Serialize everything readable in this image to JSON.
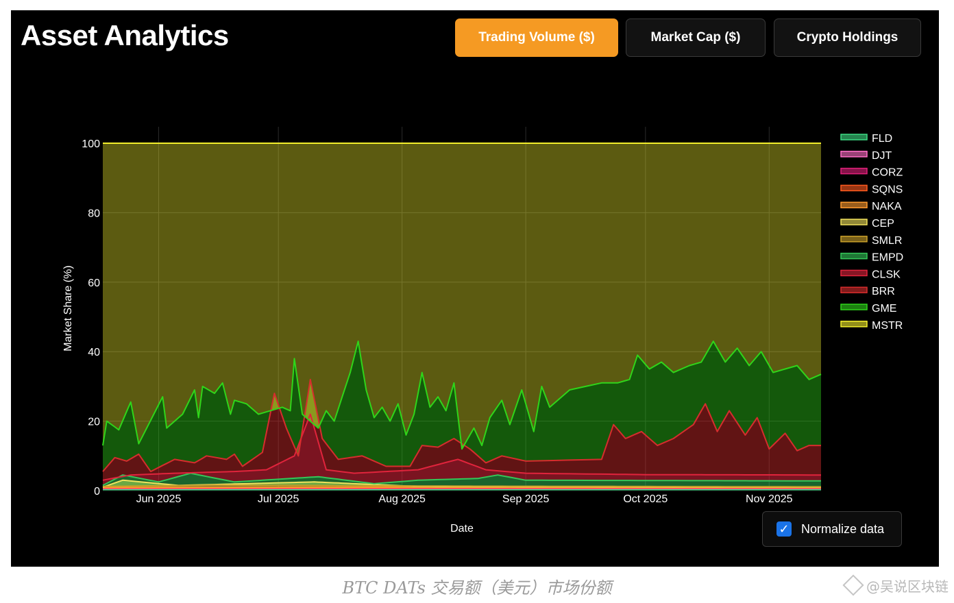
{
  "header": {
    "title": "Asset Analytics",
    "tabs": [
      {
        "label": "Trading Volume ($)",
        "active": true
      },
      {
        "label": "Market Cap ($)",
        "active": false
      },
      {
        "label": "Crypto Holdings",
        "active": false
      }
    ]
  },
  "normalize": {
    "label": "Normalize data",
    "checked": true
  },
  "caption": "BTC DATs 交易额（美元）市场份额",
  "watermark": "@吴说区块链",
  "colors": {
    "accent": "#f59a23",
    "checkbox": "#1a73e8"
  },
  "chart_data": {
    "type": "area",
    "xlabel": "Date",
    "ylabel": "Market Share (%)",
    "ylim": [
      0,
      100
    ],
    "xlim": [
      "2025-05-18",
      "2025-11-14"
    ],
    "yticks": [
      0,
      20,
      40,
      60,
      80,
      100
    ],
    "xticks": [
      {
        "date": "2025-06-01",
        "label": "Jun 2025"
      },
      {
        "date": "2025-07-01",
        "label": "Jul 2025"
      },
      {
        "date": "2025-08-01",
        "label": "Aug 2025"
      },
      {
        "date": "2025-09-01",
        "label": "Sep 2025"
      },
      {
        "date": "2025-10-01",
        "label": "Oct 2025"
      },
      {
        "date": "2025-11-01",
        "label": "Nov 2025"
      }
    ],
    "grid": true,
    "legend_position": "right",
    "stacked": true,
    "series_cumulative_top": [
      {
        "name": "FLD",
        "color": "#3ddc84",
        "points": [
          [
            "2025-05-18",
            0.4
          ],
          [
            "2025-07-15",
            0.4
          ],
          [
            "2025-11-14",
            0.4
          ]
        ]
      },
      {
        "name": "DJT",
        "color": "#ff6ec7",
        "points": [
          [
            "2025-05-18",
            0.6
          ],
          [
            "2025-07-15",
            0.6
          ],
          [
            "2025-11-14",
            0.6
          ]
        ]
      },
      {
        "name": "CORZ",
        "color": "#e0207a",
        "points": [
          [
            "2025-05-18",
            0.7
          ],
          [
            "2025-07-15",
            0.7
          ],
          [
            "2025-11-14",
            0.7
          ]
        ]
      },
      {
        "name": "SQNS",
        "color": "#ff5a1f",
        "points": [
          [
            "2025-05-18",
            0.8
          ],
          [
            "2025-07-15",
            0.8
          ],
          [
            "2025-11-14",
            0.8
          ]
        ]
      },
      {
        "name": "NAKA",
        "color": "#ff9b2e",
        "points": [
          [
            "2025-05-18",
            0.9
          ],
          [
            "2025-08-05",
            1.0
          ],
          [
            "2025-11-14",
            0.9
          ]
        ]
      },
      {
        "name": "CEP",
        "color": "#f2e35c",
        "points": [
          [
            "2025-05-18",
            1.0
          ],
          [
            "2025-05-23",
            3.0
          ],
          [
            "2025-06-06",
            1.5
          ],
          [
            "2025-07-10",
            2.5
          ],
          [
            "2025-08-05",
            1.2
          ],
          [
            "2025-11-14",
            1.0
          ]
        ]
      },
      {
        "name": "SMLR",
        "color": "#c9a02a",
        "points": [
          [
            "2025-05-18",
            1.2
          ],
          [
            "2025-06-15",
            1.6
          ],
          [
            "2025-08-15",
            1.3
          ],
          [
            "2025-11-14",
            1.1
          ]
        ]
      },
      {
        "name": "EMPD",
        "color": "#34c759",
        "points": [
          [
            "2025-05-18",
            1.5
          ],
          [
            "2025-05-23",
            4.5
          ],
          [
            "2025-06-01",
            2.5
          ],
          [
            "2025-06-09",
            5.0
          ],
          [
            "2025-06-20",
            2.5
          ],
          [
            "2025-07-11",
            4.0
          ],
          [
            "2025-07-25",
            2.0
          ],
          [
            "2025-08-05",
            3.0
          ],
          [
            "2025-08-20",
            3.5
          ],
          [
            "2025-08-25",
            4.5
          ],
          [
            "2025-09-01",
            3.0
          ],
          [
            "2025-11-14",
            2.8
          ]
        ]
      },
      {
        "name": "CLSK",
        "color": "#e0243c",
        "points": [
          [
            "2025-05-18",
            3.0
          ],
          [
            "2025-05-25",
            4.5
          ],
          [
            "2025-06-05",
            5.0
          ],
          [
            "2025-06-20",
            5.5
          ],
          [
            "2025-06-28",
            6.0
          ],
          [
            "2025-07-05",
            10.0
          ],
          [
            "2025-07-09",
            22.0
          ],
          [
            "2025-07-13",
            6.0
          ],
          [
            "2025-07-20",
            5.0
          ],
          [
            "2025-08-05",
            6.0
          ],
          [
            "2025-08-15",
            9.0
          ],
          [
            "2025-08-22",
            6.0
          ],
          [
            "2025-09-01",
            5.0
          ],
          [
            "2025-10-01",
            4.6
          ],
          [
            "2025-11-14",
            4.5
          ]
        ]
      },
      {
        "name": "BRR",
        "color": "#d62d2d",
        "points": [
          [
            "2025-05-18",
            5.5
          ],
          [
            "2025-05-21",
            9.5
          ],
          [
            "2025-05-24",
            8.5
          ],
          [
            "2025-05-27",
            10.5
          ],
          [
            "2025-05-30",
            5.5
          ],
          [
            "2025-06-05",
            9.0
          ],
          [
            "2025-06-10",
            8.0
          ],
          [
            "2025-06-13",
            10.0
          ],
          [
            "2025-06-18",
            9.0
          ],
          [
            "2025-06-20",
            10.5
          ],
          [
            "2025-06-22",
            7.0
          ],
          [
            "2025-06-27",
            11.0
          ],
          [
            "2025-06-30",
            28.0
          ],
          [
            "2025-07-03",
            18.0
          ],
          [
            "2025-07-06",
            10.0
          ],
          [
            "2025-07-09",
            32.0
          ],
          [
            "2025-07-12",
            15.0
          ],
          [
            "2025-07-16",
            9.0
          ],
          [
            "2025-07-22",
            10.0
          ],
          [
            "2025-07-28",
            7.0
          ],
          [
            "2025-08-03",
            7.0
          ],
          [
            "2025-08-06",
            13.0
          ],
          [
            "2025-08-10",
            12.5
          ],
          [
            "2025-08-14",
            15.0
          ],
          [
            "2025-08-18",
            12.0
          ],
          [
            "2025-08-22",
            8.0
          ],
          [
            "2025-08-26",
            10.0
          ],
          [
            "2025-09-01",
            8.5
          ],
          [
            "2025-09-20",
            9.0
          ],
          [
            "2025-09-23",
            19.0
          ],
          [
            "2025-09-26",
            15.0
          ],
          [
            "2025-09-30",
            17.0
          ],
          [
            "2025-10-04",
            13.0
          ],
          [
            "2025-10-08",
            15.0
          ],
          [
            "2025-10-13",
            19.0
          ],
          [
            "2025-10-16",
            25.0
          ],
          [
            "2025-10-19",
            17.0
          ],
          [
            "2025-10-22",
            23.0
          ],
          [
            "2025-10-26",
            16.0
          ],
          [
            "2025-10-29",
            21.0
          ],
          [
            "2025-11-01",
            12.0
          ],
          [
            "2025-11-05",
            16.5
          ],
          [
            "2025-11-08",
            11.5
          ],
          [
            "2025-11-11",
            13.0
          ],
          [
            "2025-11-14",
            13.0
          ]
        ]
      },
      {
        "name": "GME",
        "color": "#2fd51a",
        "points": [
          [
            "2025-05-18",
            13.0
          ],
          [
            "2025-05-19",
            20.0
          ],
          [
            "2025-05-22",
            17.5
          ],
          [
            "2025-05-25",
            25.5
          ],
          [
            "2025-05-27",
            13.5
          ],
          [
            "2025-06-02",
            27.0
          ],
          [
            "2025-06-03",
            18.0
          ],
          [
            "2025-06-07",
            22.0
          ],
          [
            "2025-06-10",
            29.0
          ],
          [
            "2025-06-11",
            21.0
          ],
          [
            "2025-06-12",
            30.0
          ],
          [
            "2025-06-15",
            28.0
          ],
          [
            "2025-06-17",
            31.0
          ],
          [
            "2025-06-19",
            22.0
          ],
          [
            "2025-06-20",
            26.0
          ],
          [
            "2025-06-23",
            25.0
          ],
          [
            "2025-06-26",
            22.0
          ],
          [
            "2025-07-02",
            24.0
          ],
          [
            "2025-07-04",
            23.0
          ],
          [
            "2025-07-05",
            38.0
          ],
          [
            "2025-07-07",
            22.0
          ],
          [
            "2025-07-11",
            18.0
          ],
          [
            "2025-07-13",
            23.0
          ],
          [
            "2025-07-15",
            20.0
          ],
          [
            "2025-07-17",
            27.0
          ],
          [
            "2025-07-19",
            34.0
          ],
          [
            "2025-07-21",
            43.0
          ],
          [
            "2025-07-23",
            29.0
          ],
          [
            "2025-07-25",
            21.0
          ],
          [
            "2025-07-27",
            24.0
          ],
          [
            "2025-07-29",
            20.0
          ],
          [
            "2025-07-31",
            25.0
          ],
          [
            "2025-08-02",
            16.0
          ],
          [
            "2025-08-04",
            22.0
          ],
          [
            "2025-08-06",
            34.0
          ],
          [
            "2025-08-08",
            24.0
          ],
          [
            "2025-08-10",
            27.0
          ],
          [
            "2025-08-12",
            23.0
          ],
          [
            "2025-08-14",
            31.0
          ],
          [
            "2025-08-16",
            12.0
          ],
          [
            "2025-08-19",
            18.0
          ],
          [
            "2025-08-21",
            13.0
          ],
          [
            "2025-08-23",
            21.0
          ],
          [
            "2025-08-26",
            26.0
          ],
          [
            "2025-08-28",
            19.0
          ],
          [
            "2025-08-31",
            29.0
          ],
          [
            "2025-09-03",
            17.0
          ],
          [
            "2025-09-05",
            30.0
          ],
          [
            "2025-09-07",
            24.0
          ],
          [
            "2025-09-12",
            29.0
          ],
          [
            "2025-09-16",
            30.0
          ],
          [
            "2025-09-20",
            31.0
          ],
          [
            "2025-09-24",
            31.0
          ],
          [
            "2025-09-27",
            32.0
          ],
          [
            "2025-09-29",
            39.0
          ],
          [
            "2025-10-02",
            35.0
          ],
          [
            "2025-10-05",
            37.0
          ],
          [
            "2025-10-08",
            34.0
          ],
          [
            "2025-10-12",
            36.0
          ],
          [
            "2025-10-15",
            37.0
          ],
          [
            "2025-10-18",
            43.0
          ],
          [
            "2025-10-21",
            37.0
          ],
          [
            "2025-10-24",
            41.0
          ],
          [
            "2025-10-27",
            36.0
          ],
          [
            "2025-10-30",
            40.0
          ],
          [
            "2025-11-02",
            34.0
          ],
          [
            "2025-11-05",
            35.0
          ],
          [
            "2025-11-08",
            36.0
          ],
          [
            "2025-11-11",
            32.0
          ],
          [
            "2025-11-14",
            33.5
          ]
        ]
      },
      {
        "name": "MSTR",
        "color": "#f3ef2c",
        "points": [
          [
            "2025-05-18",
            100
          ],
          [
            "2025-11-14",
            100
          ]
        ]
      }
    ]
  }
}
